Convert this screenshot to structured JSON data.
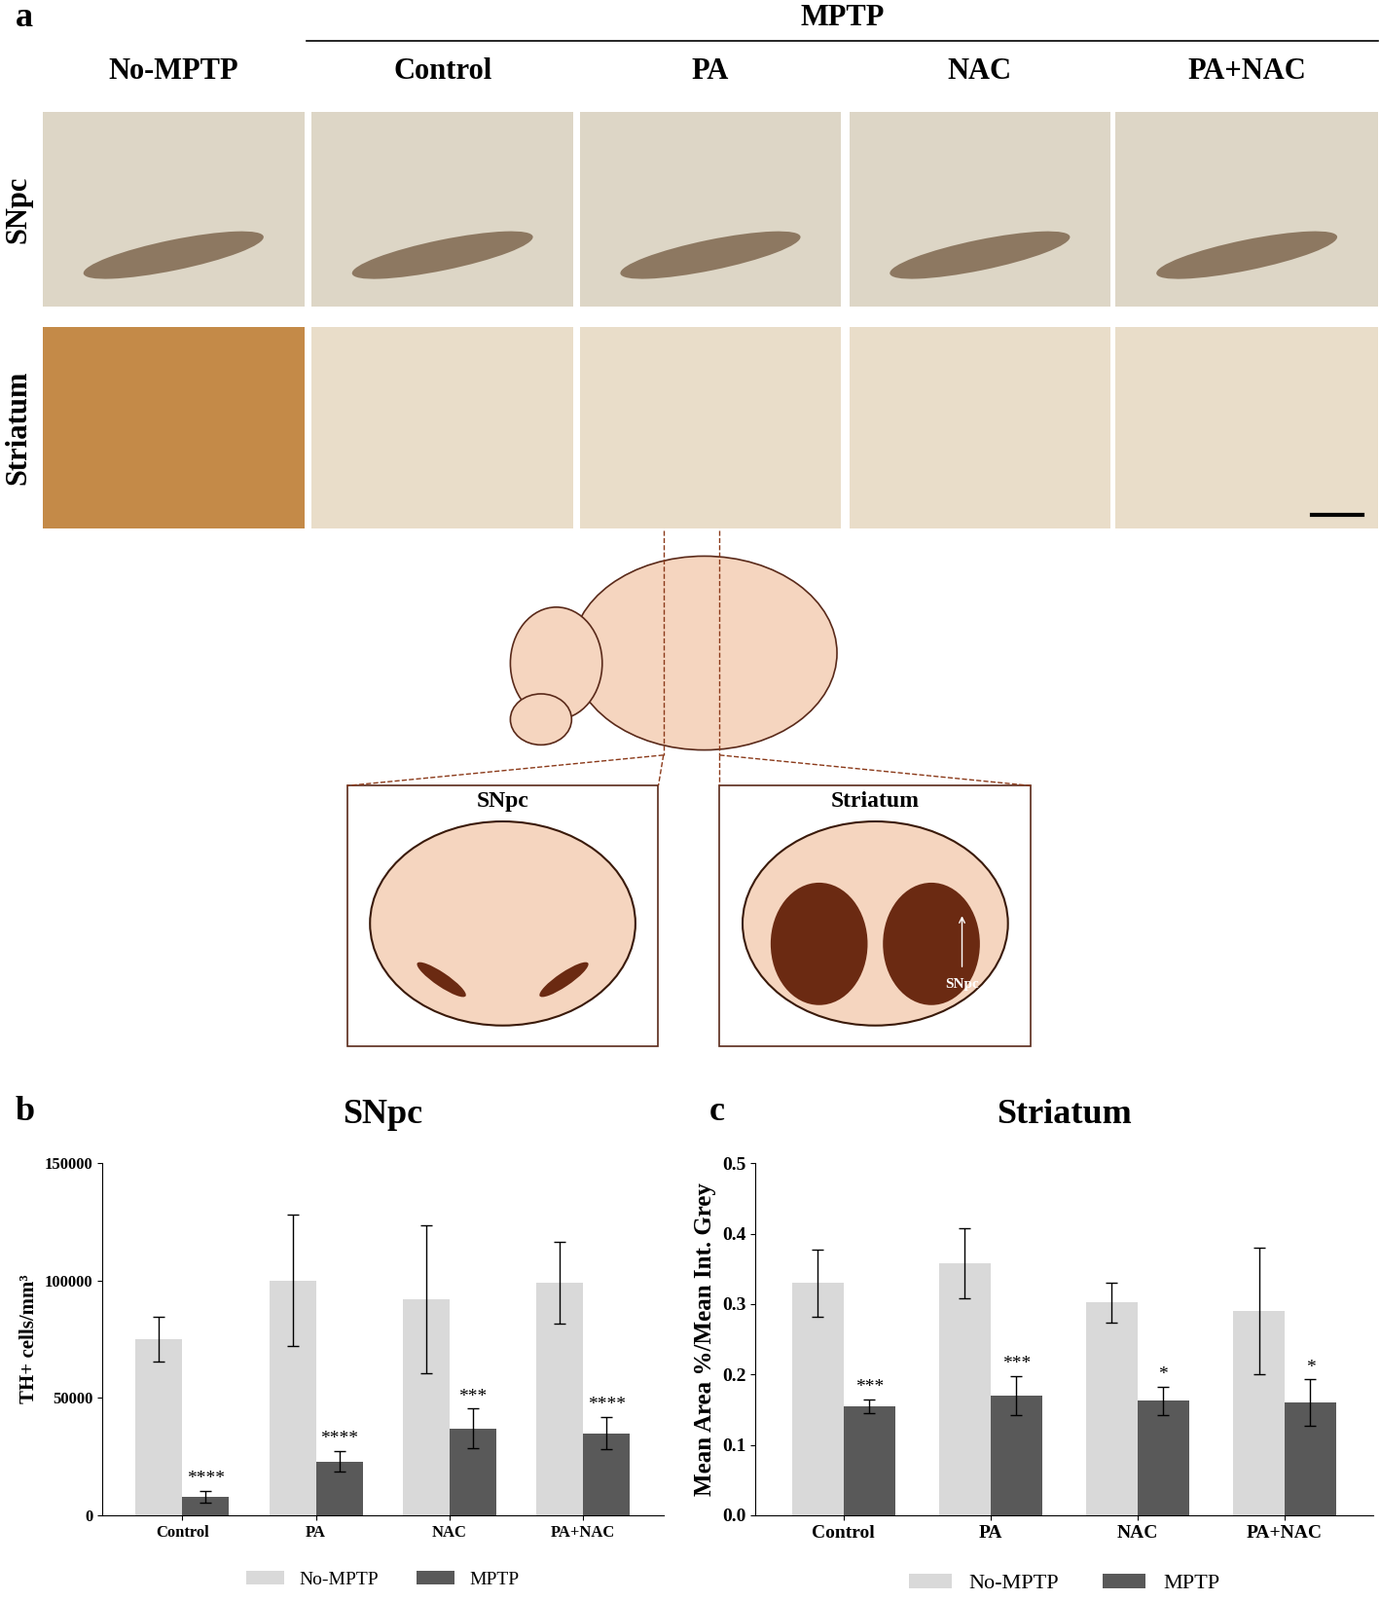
{
  "panel_a": {
    "label": "a",
    "group": "MPTP",
    "columns": [
      "No-MPTP",
      "Control",
      "PA",
      "NAC",
      "PA+NAC"
    ],
    "rows": [
      "SNpc",
      "Striatum"
    ],
    "schematic": {
      "sections": [
        "SNpc",
        "Striatum"
      ],
      "arrow_label": "SNpc"
    }
  },
  "chart_data": [
    {
      "panel": "b",
      "type": "bar",
      "title": "SNpc",
      "y_label": "TH+ cells/mm³",
      "categories": [
        "Control",
        "PA",
        "NAC",
        "PA+NAC"
      ],
      "series": [
        {
          "name": "No-MPTP",
          "color": "#d9d9d9",
          "values": [
            75000,
            100000,
            92000,
            99000
          ],
          "errors": [
            9500,
            28000,
            31500,
            17500
          ]
        },
        {
          "name": "MPTP",
          "color": "#595959",
          "values": [
            8000,
            23000,
            37000,
            35000
          ],
          "errors": [
            2500,
            4500,
            8500,
            7000
          ],
          "annotations": [
            "****",
            "****",
            "***",
            "****"
          ]
        }
      ],
      "ylim": [
        0,
        150000
      ],
      "yticks": [
        0,
        50000,
        100000,
        150000
      ],
      "grid": false,
      "legend": "upper center"
    },
    {
      "panel": "c",
      "type": "bar",
      "title": "Striatum",
      "y_label": "Mean Area %/Mean Int. Grey",
      "categories": [
        "Control",
        "PA",
        "NAC",
        "PA+NAC"
      ],
      "series": [
        {
          "name": "No-MPTP",
          "color": "#d9d9d9",
          "values": [
            0.33,
            0.358,
            0.302,
            0.29
          ],
          "errors": [
            0.048,
            0.05,
            0.028,
            0.09
          ]
        },
        {
          "name": "MPTP",
          "color": "#595959",
          "values": [
            0.155,
            0.17,
            0.163,
            0.16
          ],
          "errors": [
            0.01,
            0.028,
            0.02,
            0.033
          ],
          "annotations": [
            "***",
            "***",
            "*",
            "*"
          ]
        }
      ],
      "ylim": [
        0.0,
        0.5
      ],
      "yticks": [
        0.0,
        0.1,
        0.2,
        0.3,
        0.4,
        0.5
      ],
      "grid": false,
      "legend": "upper center"
    }
  ]
}
